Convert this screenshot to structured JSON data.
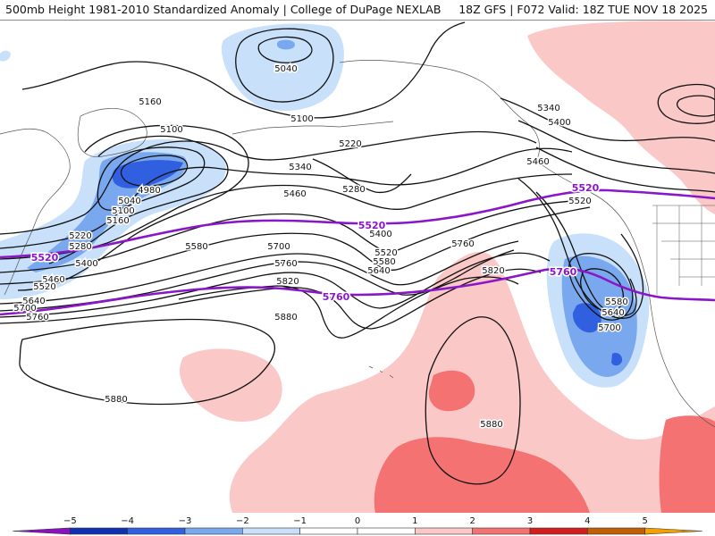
{
  "header": {
    "title_left": "500mb Height 1981-2010 Standardized Anomaly | College of DuPage NEXLAB",
    "title_right": "18Z GFS | F072 Valid: 18Z TUE NOV 18 2025"
  },
  "colors": {
    "anom_pos_1": "#fbc8c8",
    "anom_pos_2": "#f47272",
    "anom_pos_3": "#d41e1e",
    "anom_pos_4": "#c06000",
    "anom_pos_5": "#f4a000",
    "anom_neg_1": "#c8e0fa",
    "anom_neg_2": "#7aa8ee",
    "anom_neg_3": "#3060e0",
    "anom_neg_4": "#1030b0",
    "anom_neg_5": "#8a10c0",
    "height_contour": "#111111",
    "highlight_contour": "#8a16c8",
    "coastline": "#555555"
  },
  "contour_labels": [
    {
      "text": "5040"
    },
    {
      "text": "5100"
    },
    {
      "text": "5160"
    },
    {
      "text": "5100"
    },
    {
      "text": "4980"
    },
    {
      "text": "5040"
    },
    {
      "text": "5100"
    },
    {
      "text": "5160"
    },
    {
      "text": "5220"
    },
    {
      "text": "5280"
    },
    {
      "text": "5400"
    },
    {
      "text": "5460"
    },
    {
      "text": "5520"
    },
    {
      "text": "5640"
    },
    {
      "text": "5700"
    },
    {
      "text": "5760"
    },
    {
      "text": "5580"
    },
    {
      "text": "5700"
    },
    {
      "text": "5760"
    },
    {
      "text": "5820"
    },
    {
      "text": "5880"
    },
    {
      "text": "5880"
    },
    {
      "text": "5220"
    },
    {
      "text": "5340"
    },
    {
      "text": "5460"
    },
    {
      "text": "5280"
    },
    {
      "text": "5400"
    },
    {
      "text": "5520"
    },
    {
      "text": "5580"
    },
    {
      "text": "5640"
    },
    {
      "text": "5760"
    },
    {
      "text": "5820"
    },
    {
      "text": "5880"
    },
    {
      "text": "5340"
    },
    {
      "text": "5400"
    },
    {
      "text": "5460"
    },
    {
      "text": "5520"
    },
    {
      "text": "5580"
    },
    {
      "text": "5640"
    },
    {
      "text": "5700"
    }
  ],
  "highlight_labels": [
    {
      "text": "5520"
    },
    {
      "text": "5520"
    },
    {
      "text": "5520"
    },
    {
      "text": "5760"
    },
    {
      "text": "5760"
    }
  ],
  "colorbar": {
    "ticks": [
      "−5",
      "−4",
      "−3",
      "−2",
      "−1",
      "0",
      "1",
      "2",
      "3",
      "4",
      "5"
    ],
    "colors": [
      "#8a10c0",
      "#1030b0",
      "#3060e0",
      "#7aa8ee",
      "#c8e0fa",
      "#ffffff",
      "#ffffff",
      "#fbc8c8",
      "#f47272",
      "#d41e1e",
      "#c06000",
      "#f4a000"
    ]
  }
}
